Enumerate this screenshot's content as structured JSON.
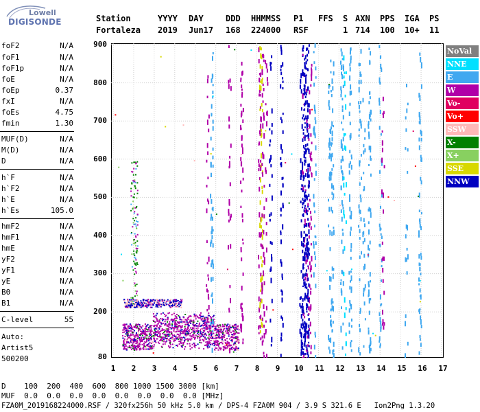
{
  "logo": {
    "line1": "Lowell",
    "line2": "DIGISONDE"
  },
  "header": {
    "row1": [
      "Station",
      "YYYY",
      "DAY",
      "DDD",
      "HHMMSS",
      "P1",
      "FFS",
      "S",
      "AXN",
      "PPS",
      "IGA",
      "PS"
    ],
    "row2": [
      "Fortaleza",
      "2019",
      "Jun17",
      "168",
      "224000",
      "RSF",
      "1",
      "714",
      "100",
      "10+",
      "11"
    ]
  },
  "params": {
    "group1": [
      {
        "label": "foF2",
        "value": "N/A"
      },
      {
        "label": "foF1",
        "value": "N/A"
      },
      {
        "label": "foF1p",
        "value": "N/A"
      },
      {
        "label": "foE",
        "value": "N/A"
      },
      {
        "label": "foEp",
        "value": "0.37"
      },
      {
        "label": "fxI",
        "value": "N/A"
      },
      {
        "label": "foEs",
        "value": "4.75"
      },
      {
        "label": "fmin",
        "value": "1.30"
      }
    ],
    "group2": [
      {
        "label": "MUF(D)",
        "value": "N/A"
      },
      {
        "label": "M(D)",
        "value": "N/A"
      },
      {
        "label": "D",
        "value": "N/A"
      }
    ],
    "group3": [
      {
        "label": "h`F",
        "value": "N/A"
      },
      {
        "label": "h`F2",
        "value": "N/A"
      },
      {
        "label": "h`E",
        "value": "N/A"
      },
      {
        "label": "h`Es",
        "value": "105.0"
      }
    ],
    "group4": [
      {
        "label": "hmF2",
        "value": "N/A"
      },
      {
        "label": "hmF1",
        "value": "N/A"
      },
      {
        "label": "hmE",
        "value": "N/A"
      },
      {
        "label": "yF2",
        "value": "N/A"
      },
      {
        "label": "yF1",
        "value": "N/A"
      },
      {
        "label": "yE",
        "value": "N/A"
      },
      {
        "label": "B0",
        "value": "N/A"
      },
      {
        "label": "B1",
        "value": "N/A"
      }
    ],
    "group5": [
      {
        "label": "C-level",
        "value": "55"
      }
    ],
    "auto": [
      "Auto:",
      "Artist5",
      "500200"
    ]
  },
  "plot": {
    "y_ticks": [
      "900",
      "800",
      "700",
      "600",
      "500",
      "400",
      "300",
      "200",
      "80"
    ],
    "x_ticks": [
      "1",
      "2",
      "3",
      "4",
      "5",
      "6",
      "7",
      "8",
      "9",
      "10",
      "11",
      "12",
      "13",
      "14",
      "15",
      "16",
      "17"
    ]
  },
  "legend": [
    {
      "label": "NoVal",
      "color": "#808080"
    },
    {
      "label": "NNE",
      "color": "#00e0ff"
    },
    {
      "label": "E",
      "color": "#40a8f0"
    },
    {
      "label": "W",
      "color": "#b000a8"
    },
    {
      "label": "Vo-",
      "color": "#e00060"
    },
    {
      "label": "Vo+",
      "color": "#ff0000"
    },
    {
      "label": "SSW",
      "color": "#ffb8b8"
    },
    {
      "label": "X-",
      "color": "#008000"
    },
    {
      "label": "X+",
      "color": "#88d060"
    },
    {
      "label": "SSE",
      "color": "#d8d800"
    },
    {
      "label": "NNW",
      "color": "#0000c0"
    }
  ],
  "footer": {
    "line1": "D    100  200  400  600  800 1000 1500 3000 [km]",
    "line2": "MUF  0.0  0.0  0.0  0.0  0.0  0.0  0.0  0.0 [MHz]",
    "line3": "FZA0M_2019168224000.RSF / 320fx256h 50 kHz 5.0 km / DPS-4 FZA0M 904 / 3.9 S 321.6 E   Ion2Png 1.3.20"
  }
}
